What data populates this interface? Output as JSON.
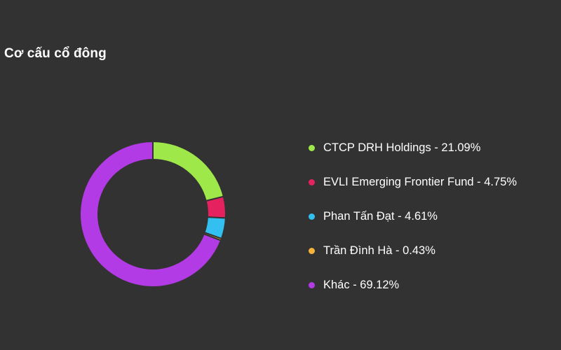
{
  "title": "Cơ cấu cổ đông",
  "chart_data": {
    "type": "pie",
    "donut": true,
    "legend_position": "right",
    "categories": [
      "CTCP DRH Holdings",
      "EVLI Emerging Frontier Fund",
      "Phan Tấn Đạt",
      "Trần Đình Hà",
      "Khác"
    ],
    "values": [
      21.09,
      4.75,
      4.61,
      0.43,
      69.12
    ],
    "colors": [
      "#9fe84a",
      "#e5225f",
      "#33bff0",
      "#f6b23a",
      "#b33be6"
    ],
    "legend_labels": [
      "CTCP DRH Holdings - 21.09%",
      "EVLI Emerging Frontier Fund - 4.75%",
      "Phan Tấn Đạt - 4.61%",
      "Trần Đình Hà - 0.43%",
      "Khác - 69.12%"
    ]
  }
}
